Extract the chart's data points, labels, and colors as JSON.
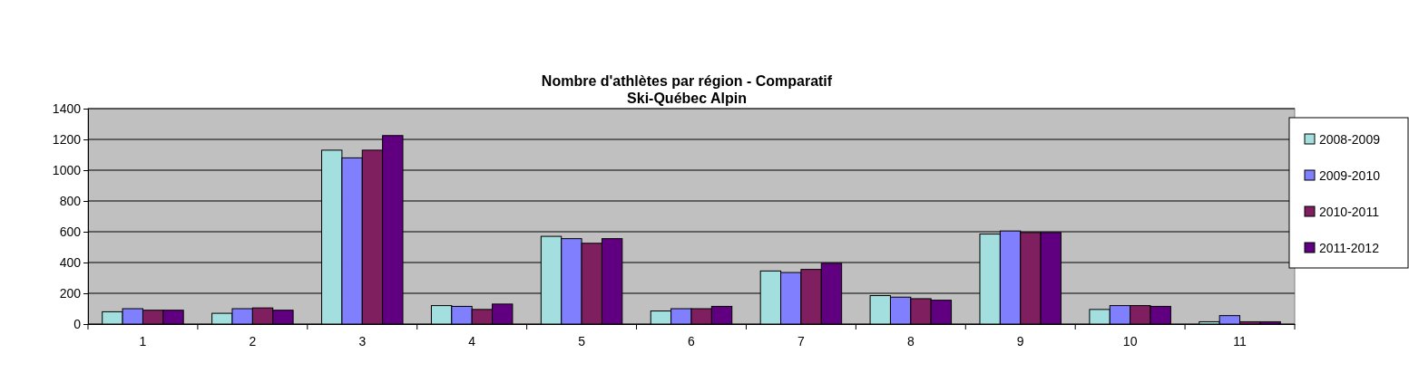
{
  "chart_data": {
    "type": "bar",
    "title": "Nombre d'athlètes par région - Comparatif\nSki-Québec Alpin",
    "categories": [
      "1",
      "2",
      "3",
      "4",
      "5",
      "6",
      "7",
      "8",
      "9",
      "10",
      "11"
    ],
    "series": [
      {
        "name": "2008-2009",
        "color": "#a4dfe0",
        "values": [
          80,
          70,
          1130,
          120,
          570,
          85,
          345,
          185,
          585,
          95,
          15
        ]
      },
      {
        "name": "2009-2010",
        "color": "#8080ff",
        "values": [
          100,
          100,
          1080,
          115,
          555,
          100,
          335,
          175,
          605,
          120,
          55
        ]
      },
      {
        "name": "2010-2011",
        "color": "#7f1f5f",
        "values": [
          90,
          105,
          1130,
          95,
          525,
          100,
          355,
          165,
          595,
          120,
          15
        ]
      },
      {
        "name": "2011-2012",
        "color": "#600080",
        "values": [
          90,
          90,
          1225,
          130,
          555,
          115,
          395,
          155,
          595,
          115,
          15
        ]
      }
    ],
    "ylim": [
      0,
      1400
    ],
    "yticks": [
      0,
      200,
      400,
      600,
      800,
      1000,
      1200,
      1400
    ],
    "grid": "y",
    "legend": "right"
  }
}
